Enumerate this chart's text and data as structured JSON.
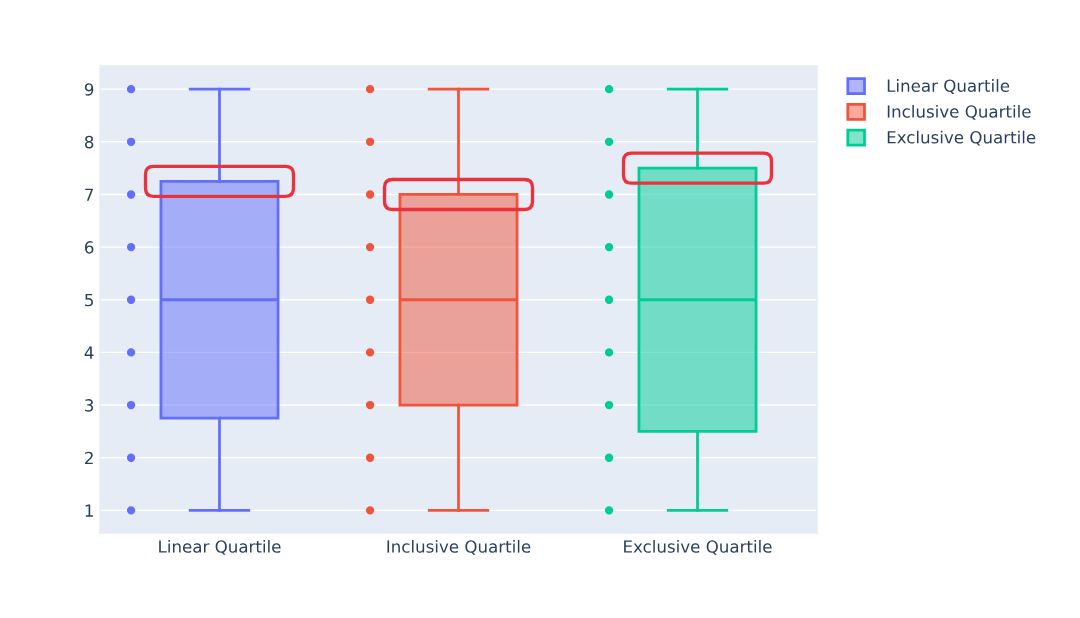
{
  "chart_data": {
    "type": "box",
    "categories": [
      "Linear Quartile",
      "Inclusive Quartile",
      "Exclusive Quartile"
    ],
    "series": [
      {
        "name": "Linear Quartile",
        "color": "#636efa",
        "boxes": [
          {
            "low": 1,
            "q1": 2.75,
            "median": 5,
            "q3": 7.25,
            "high": 9
          },
          null,
          null
        ]
      },
      {
        "name": "Inclusive Quartile",
        "color": "#ef553b",
        "boxes": [
          null,
          {
            "low": 1,
            "q1": 3,
            "median": 5,
            "q3": 7,
            "high": 9
          },
          null
        ]
      },
      {
        "name": "Exclusive Quartile",
        "color": "#00cc96",
        "boxes": [
          null,
          null,
          {
            "low": 1,
            "q1": 2.5,
            "median": 5,
            "q3": 7.5,
            "high": 9
          }
        ]
      },
      {
        "type": "scatter",
        "color": "#636efa",
        "x": [
          "Linear Quartile",
          "Linear Quartile",
          "Linear Quartile",
          "Linear Quartile",
          "Linear Quartile",
          "Linear Quartile",
          "Linear Quartile",
          "Linear Quartile",
          "Linear Quartile"
        ],
        "values": [
          1,
          2,
          3,
          4,
          5,
          6,
          7,
          8,
          9
        ]
      },
      {
        "type": "scatter",
        "color": "#ef553b",
        "x": [
          "Inclusive Quartile",
          "Inclusive Quartile",
          "Inclusive Quartile",
          "Inclusive Quartile",
          "Inclusive Quartile",
          "Inclusive Quartile",
          "Inclusive Quartile",
          "Inclusive Quartile",
          "Inclusive Quartile"
        ],
        "values": [
          1,
          2,
          3,
          4,
          5,
          6,
          7,
          8,
          9
        ]
      },
      {
        "type": "scatter",
        "color": "#00cc96",
        "x": [
          "Exclusive Quartile",
          "Exclusive Quartile",
          "Exclusive Quartile",
          "Exclusive Quartile",
          "Exclusive Quartile",
          "Exclusive Quartile",
          "Exclusive Quartile",
          "Exclusive Quartile",
          "Exclusive Quartile"
        ],
        "values": [
          1,
          2,
          3,
          4,
          5,
          6,
          7,
          8,
          9
        ]
      }
    ],
    "ylim": [
      0.57,
      9.44
    ],
    "yticks": [
      1,
      2,
      3,
      4,
      5,
      6,
      7,
      8,
      9
    ],
    "grid": "y",
    "legend": "top right",
    "marker": "circle"
  }
}
